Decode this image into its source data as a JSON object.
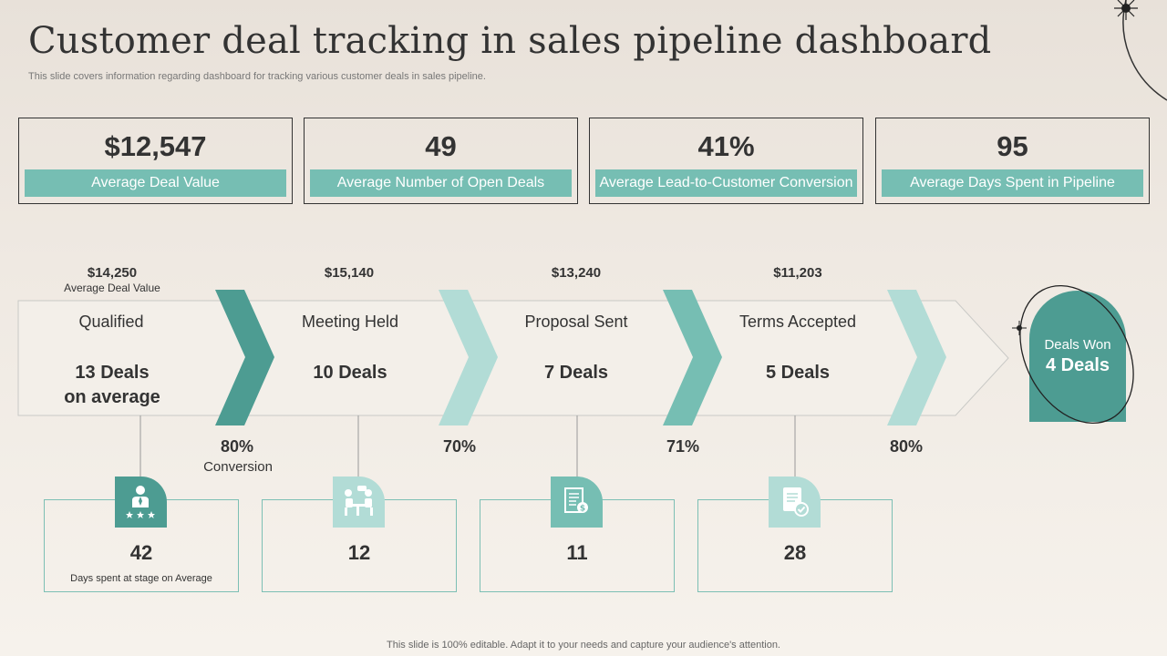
{
  "header": {
    "title": "Customer deal tracking in sales pipeline dashboard",
    "subtitle": "This slide covers information regarding dashboard for tracking various customer deals in sales pipeline."
  },
  "kpis": [
    {
      "value": "$12,547",
      "label": "Average Deal Value"
    },
    {
      "value": "49",
      "label": "Average Number of Open Deals"
    },
    {
      "value": "41%",
      "label": "Average Lead-to-Customer Conversion"
    },
    {
      "value": "95",
      "label": "Average Days Spent in Pipeline"
    }
  ],
  "pipeline": {
    "stages": [
      {
        "value": "$14,250",
        "value_caption": "Average  Deal Value",
        "name": "Qualified",
        "deals": "13 Deals",
        "deals_sub": "on average"
      },
      {
        "value": "$15,140",
        "name": "Meeting Held",
        "deals": "10 Deals"
      },
      {
        "value": "$13,240",
        "name": "Proposal Sent",
        "deals": "7 Deals"
      },
      {
        "value": "$11,203",
        "name": "Terms Accepted",
        "deals": "5 Deals"
      }
    ],
    "conversions": [
      {
        "value": "80%",
        "caption": "Conversion"
      },
      {
        "value": "70%"
      },
      {
        "value": "71%"
      },
      {
        "value": "80%"
      }
    ],
    "won": {
      "label": "Deals Won",
      "value": "4 Deals"
    }
  },
  "days": {
    "caption": "Days spent at stage on Average",
    "items": [
      {
        "value": "42",
        "icon": "person-stars-icon"
      },
      {
        "value": "12",
        "icon": "meeting-icon"
      },
      {
        "value": "11",
        "icon": "proposal-document-icon"
      },
      {
        "value": "28",
        "icon": "approved-document-icon"
      }
    ]
  },
  "colors": {
    "teal_dark": "#4d9c92",
    "teal_mid": "#76beb3",
    "teal_light": "#b2dcd6"
  },
  "footer": "This slide is 100% editable. Adapt it to your needs and capture your audience's attention."
}
